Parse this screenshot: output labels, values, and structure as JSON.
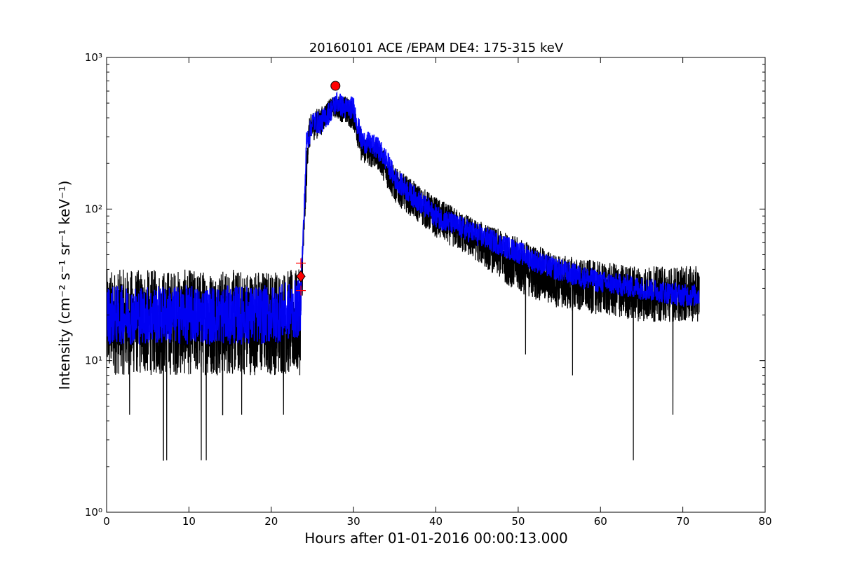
{
  "chart_data": {
    "type": "line",
    "title": "20160101 ACE /EPAM DE4: 175-315 keV",
    "xlabel": "Hours after 01-01-2016 00:00:13.000",
    "ylabel": "Intensity (cm⁻² s⁻¹ sr⁻¹ keV⁻¹)",
    "xlim": [
      0,
      80
    ],
    "ylim": [
      1,
      1000
    ],
    "yscale": "log",
    "grid": false,
    "x_ticks": [
      0,
      10,
      20,
      30,
      40,
      50,
      60,
      70,
      80
    ],
    "x_tick_labels": [
      "0",
      "10",
      "20",
      "30",
      "40",
      "50",
      "60",
      "70",
      "80"
    ],
    "y_ticks": [
      1,
      10,
      100,
      1000
    ],
    "y_tick_labels": [
      "10⁰",
      "10¹",
      "10²",
      "10³"
    ],
    "colors": {
      "raw": "#000000",
      "smoothed": "#0000ff",
      "markers": "#ff0000"
    },
    "series": [
      {
        "style": "black noisy line (raw intensity)",
        "envelope": {
          "x": [
            0,
            23.5,
            23.7,
            24.0,
            24.5,
            25.0,
            26.0,
            27.0,
            27.8,
            29.0,
            30.0,
            31.0,
            33.0,
            35.0,
            40.0,
            45.0,
            50.0,
            55.0,
            60.0,
            65.0,
            70.0,
            72.0
          ],
          "low": [
            8,
            8,
            20,
            60,
            230,
            280,
            300,
            380,
            400,
            360,
            330,
            200,
            180,
            110,
            65,
            45,
            28,
            22,
            20,
            18,
            18,
            18
          ],
          "high": [
            40,
            40,
            50,
            100,
            380,
            450,
            470,
            530,
            560,
            560,
            520,
            320,
            280,
            190,
            120,
            85,
            65,
            50,
            45,
            42,
            42,
            42
          ]
        }
      },
      {
        "style": "blue smoothed line",
        "x": [
          0,
          5,
          10,
          15,
          20,
          23.5,
          23.7,
          24.0,
          24.3,
          24.6,
          25.0,
          26.0,
          27.0,
          28.0,
          29.0,
          30.0,
          31.0,
          32.0,
          33.0,
          34.0,
          35.0,
          37.0,
          40.0,
          42.0,
          45.0,
          48.0,
          50.0,
          53.0,
          56.0,
          60.0,
          65.0,
          70.0,
          72.0
        ],
        "values": [
          20,
          20,
          20,
          20,
          20,
          22,
          40,
          95,
          290,
          300,
          380,
          370,
          430,
          510,
          460,
          470,
          280,
          270,
          250,
          210,
          160,
          125,
          90,
          80,
          68,
          58,
          52,
          43,
          38,
          33,
          30,
          27,
          27
        ]
      }
    ],
    "markers": [
      {
        "shape": "circle",
        "x": 27.8,
        "y": 650
      },
      {
        "shape": "diamond",
        "x": 23.6,
        "y": 36
      },
      {
        "shape": "plus",
        "x": 23.6,
        "y": 44
      },
      {
        "shape": "plus",
        "x": 23.6,
        "y": 29
      }
    ],
    "dropouts": [
      {
        "x": 6.9,
        "y": 2.2
      },
      {
        "x": 7.3,
        "y": 2.2
      },
      {
        "x": 11.5,
        "y": 2.2
      },
      {
        "x": 12.1,
        "y": 2.2
      },
      {
        "x": 64.0,
        "y": 2.2
      },
      {
        "x": 2.8,
        "y": 4.4
      },
      {
        "x": 14.1,
        "y": 4.4
      },
      {
        "x": 16.4,
        "y": 4.4
      },
      {
        "x": 21.5,
        "y": 4.4
      },
      {
        "x": 68.8,
        "y": 4.4
      },
      {
        "x": 50.9,
        "y": 11
      },
      {
        "x": 56.6,
        "y": 8
      }
    ]
  }
}
